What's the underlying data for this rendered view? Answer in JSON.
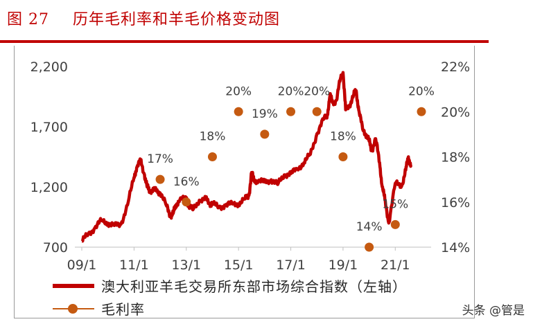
{
  "figure": {
    "number": "图 27",
    "title": "历年毛利率和羊毛价格变动图"
  },
  "watermark": "头条 @管是",
  "legend": {
    "line_label": "澳大利亚羊毛交易所东部市场综合指数（左轴）",
    "dot_label": "毛利率"
  },
  "colors": {
    "line": "#c00000",
    "dots": "#c55a11",
    "title": "#c00000",
    "axis_text": "#404040"
  },
  "chart_data": {
    "type": "line",
    "x_tick_labels": [
      "09/1",
      "11/1",
      "13/1",
      "15/1",
      "17/1",
      "19/1",
      "21/1"
    ],
    "left_axis": {
      "ticks": [
        "700",
        "1,200",
        "1,700",
        "2,200"
      ],
      "range": [
        700,
        2200
      ]
    },
    "right_axis": {
      "ticks": [
        "14%",
        "16%",
        "18%",
        "20%",
        "22%"
      ],
      "range": [
        14,
        22
      ]
    },
    "series": [
      {
        "name": "澳大利亚羊毛交易所东部市场综合指数（左轴）",
        "axis": "left",
        "x": [
          2009.0,
          2009.25,
          2009.5,
          2009.75,
          2010.0,
          2010.25,
          2010.5,
          2010.75,
          2011.0,
          2011.1,
          2011.25,
          2011.4,
          2011.5,
          2011.6,
          2011.75,
          2011.9,
          2012.0,
          2012.25,
          2012.4,
          2012.5,
          2012.6,
          2012.75,
          2013.0,
          2013.1,
          2013.25,
          2013.5,
          2013.75,
          2013.9,
          2014.0,
          2014.25,
          2014.5,
          2014.75,
          2015.0,
          2015.25,
          2015.4,
          2015.5,
          2015.6,
          2015.75,
          2016.0,
          2016.25,
          2016.5,
          2016.75,
          2017.0,
          2017.25,
          2017.5,
          2017.75,
          2018.0,
          2018.25,
          2018.4,
          2018.5,
          2018.6,
          2018.75,
          2018.9,
          2019.0,
          2019.1,
          2019.25,
          2019.4,
          2019.5,
          2019.6,
          2019.75,
          2019.9,
          2020.0,
          2020.1,
          2020.25,
          2020.4,
          2020.5,
          2020.6,
          2020.75,
          2021.0,
          2021.25,
          2021.4,
          2021.5,
          2021.6
        ],
        "values": [
          750,
          810,
          860,
          920,
          900,
          880,
          890,
          1050,
          1280,
          1360,
          1420,
          1300,
          1200,
          1170,
          1180,
          1160,
          1150,
          1040,
          960,
          980,
          1050,
          1090,
          1110,
          1040,
          1010,
          1090,
          1100,
          1060,
          1060,
          1030,
          1050,
          1060,
          1060,
          1100,
          1130,
          1320,
          1250,
          1250,
          1240,
          1260,
          1220,
          1300,
          1310,
          1350,
          1400,
          1470,
          1640,
          1760,
          1800,
          1960,
          1900,
          1920,
          2100,
          2150,
          1840,
          1880,
          1960,
          2000,
          1840,
          1680,
          1630,
          1580,
          1500,
          1600,
          1400,
          1200,
          1100,
          900,
          1230,
          1210,
          1340,
          1450,
          1380
        ]
      },
      {
        "name": "毛利率",
        "axis": "right",
        "x": [
          2012.0,
          2013.0,
          2014.0,
          2015.0,
          2016.0,
          2017.0,
          2018.0,
          2019.0,
          2020.0,
          2021.0,
          2022.0
        ],
        "values": [
          17,
          16,
          18,
          20,
          19,
          20,
          20,
          18,
          14,
          15,
          20
        ],
        "labels": [
          "17%",
          "16%",
          "18%",
          "20%",
          "19%",
          "20%",
          "20%",
          "18%",
          "14%",
          "15%",
          "20%"
        ]
      }
    ]
  }
}
